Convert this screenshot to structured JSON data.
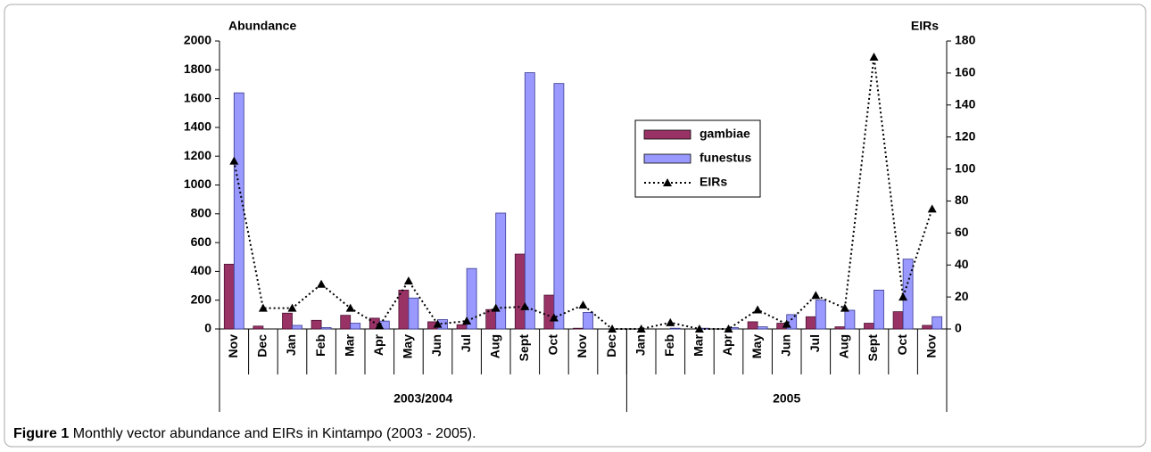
{
  "chart_data": {
    "type": "bar",
    "ylabel": "Abundance",
    "y2label": "EIRs",
    "category_groups": [
      {
        "label": "2003/2004",
        "categories": [
          "Nov",
          "Dec",
          "Jan",
          "Feb",
          "Mar",
          "Apr",
          "May",
          "Jun",
          "Jul",
          "Aug",
          "Sept",
          "Oct",
          "Nov",
          "Dec"
        ]
      },
      {
        "label": "2005",
        "categories": [
          "Jan",
          "Feb",
          "Mar",
          "Apr",
          "May",
          "Jun",
          "Jul",
          "Aug",
          "Sept",
          "Oct",
          "Nov"
        ]
      }
    ],
    "series": [
      {
        "name": "gambiae",
        "type": "bar",
        "color": "#993366",
        "values": [
          450,
          20,
          110,
          60,
          95,
          75,
          270,
          50,
          30,
          135,
          520,
          235,
          5,
          0,
          0,
          0,
          0,
          0,
          50,
          40,
          85,
          15,
          40,
          120,
          25
        ]
      },
      {
        "name": "funestus",
        "type": "bar",
        "color": "#9999ff",
        "values": [
          1640,
          0,
          25,
          10,
          40,
          55,
          215,
          65,
          420,
          805,
          1780,
          1705,
          115,
          0,
          0,
          5,
          5,
          10,
          15,
          100,
          200,
          130,
          270,
          485,
          85
        ]
      },
      {
        "name": "EIRs",
        "type": "line",
        "axis": "y2",
        "color": "#000000",
        "values": [
          105,
          13,
          13,
          28,
          13,
          2,
          30,
          3,
          5,
          13,
          14,
          7,
          15,
          0,
          0,
          4,
          0,
          0,
          12,
          3,
          21,
          13,
          170,
          20,
          75
        ]
      }
    ],
    "ylim": [
      0,
      2000
    ],
    "yticks": [
      0,
      200,
      400,
      600,
      800,
      1000,
      1200,
      1400,
      1600,
      1800,
      2000
    ],
    "y2lim": [
      0,
      180
    ],
    "y2ticks": [
      0,
      20,
      40,
      60,
      80,
      100,
      120,
      140,
      160,
      180
    ],
    "legend": "upper center",
    "caption": {
      "label": "Figure 1",
      "text": "Monthly vector abundance and EIRs in Kintampo (2003 - 2005)."
    }
  }
}
